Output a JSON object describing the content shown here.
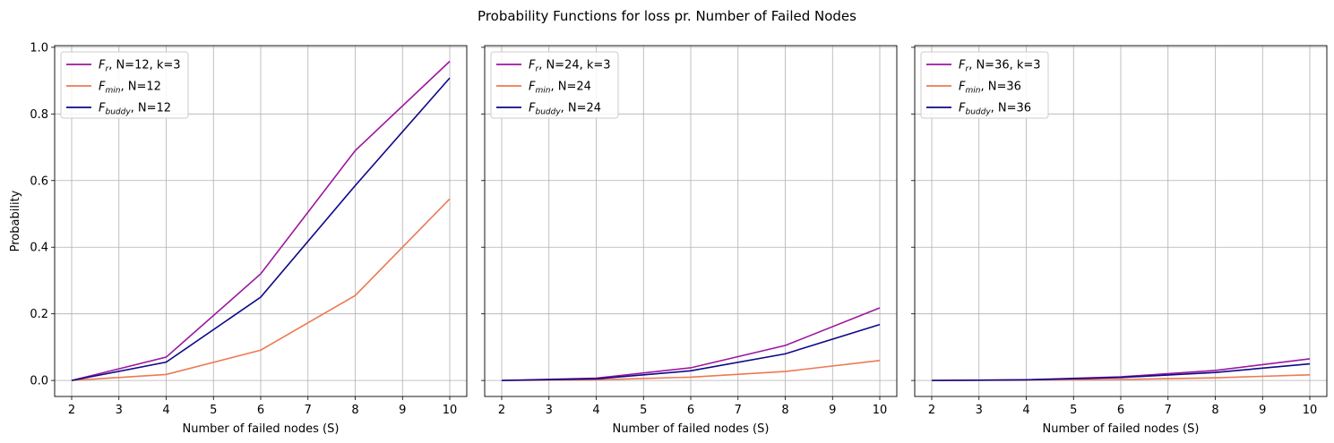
{
  "figure": {
    "suptitle": "Probability Functions for loss pr. Number of Failed Nodes"
  },
  "colors": {
    "F_r": "#9c179e",
    "F_min": "#ed7953",
    "F_buddy": "#0d0887",
    "grid": "#b0b0b0"
  },
  "chart_data": [
    {
      "type": "line",
      "xlabel": "Number of failed nodes (S)",
      "ylabel": "Probability",
      "xlim": [
        1.64,
        10.36
      ],
      "ylim": [
        -0.048,
        1.005
      ],
      "xticks": [
        2,
        3,
        4,
        5,
        6,
        7,
        8,
        9,
        10
      ],
      "yticks": [
        0.0,
        0.2,
        0.4,
        0.6,
        0.8,
        1.0
      ],
      "ytick_labels": [
        "0.0",
        "0.2",
        "0.4",
        "0.6",
        "0.8",
        "1.0"
      ],
      "grid": true,
      "legend_position": "upper-left",
      "x": [
        2,
        4,
        6,
        8,
        10
      ],
      "series": [
        {
          "key": "F_r",
          "symbol": "F",
          "subscript": "r",
          "suffix": ", N=12, k=3",
          "values": [
            0.0,
            0.07,
            0.32,
            0.69,
            0.958
          ]
        },
        {
          "key": "F_min",
          "symbol": "F",
          "subscript": "min",
          "suffix": ", N=12",
          "values": [
            0.0,
            0.018,
            0.091,
            0.255,
            0.545
          ]
        },
        {
          "key": "F_buddy",
          "symbol": "F",
          "subscript": "buddy",
          "suffix": ", N=12",
          "values": [
            0.0,
            0.055,
            0.25,
            0.585,
            0.908
          ]
        }
      ]
    },
    {
      "type": "line",
      "xlabel": "Number of failed nodes (S)",
      "ylabel": "",
      "xlim": [
        1.64,
        10.36
      ],
      "ylim": [
        -0.048,
        1.005
      ],
      "xticks": [
        2,
        3,
        4,
        5,
        6,
        7,
        8,
        9,
        10
      ],
      "yticks": [
        0.0,
        0.2,
        0.4,
        0.6,
        0.8,
        1.0
      ],
      "ytick_labels": [],
      "grid": true,
      "legend_position": "upper-left",
      "x": [
        2,
        4,
        6,
        8,
        10
      ],
      "series": [
        {
          "key": "F_r",
          "symbol": "F",
          "subscript": "r",
          "suffix": ", N=24, k=3",
          "values": [
            0.0,
            0.007,
            0.038,
            0.105,
            0.218
          ]
        },
        {
          "key": "F_min",
          "symbol": "F",
          "subscript": "min",
          "suffix": ", N=24",
          "values": [
            0.0,
            0.002,
            0.01,
            0.027,
            0.06
          ]
        },
        {
          "key": "F_buddy",
          "symbol": "F",
          "subscript": "buddy",
          "suffix": ", N=24",
          "values": [
            0.0,
            0.005,
            0.029,
            0.08,
            0.168
          ]
        }
      ]
    },
    {
      "type": "line",
      "xlabel": "Number of failed nodes (S)",
      "ylabel": "",
      "xlim": [
        1.64,
        10.36
      ],
      "ylim": [
        -0.048,
        1.005
      ],
      "xticks": [
        2,
        3,
        4,
        5,
        6,
        7,
        8,
        9,
        10
      ],
      "yticks": [
        0.0,
        0.2,
        0.4,
        0.6,
        0.8,
        1.0
      ],
      "ytick_labels": [],
      "grid": true,
      "legend_position": "upper-left",
      "x": [
        2,
        4,
        6,
        8,
        10
      ],
      "series": [
        {
          "key": "F_r",
          "symbol": "F",
          "subscript": "r",
          "suffix": ", N=36, k=3",
          "values": [
            0.0,
            0.002,
            0.011,
            0.03,
            0.065
          ]
        },
        {
          "key": "F_min",
          "symbol": "F",
          "subscript": "min",
          "suffix": ", N=36",
          "values": [
            0.0,
            0.001,
            0.003,
            0.008,
            0.017
          ]
        },
        {
          "key": "F_buddy",
          "symbol": "F",
          "subscript": "buddy",
          "suffix": ", N=36",
          "values": [
            0.0,
            0.002,
            0.009,
            0.024,
            0.05
          ]
        }
      ]
    }
  ]
}
